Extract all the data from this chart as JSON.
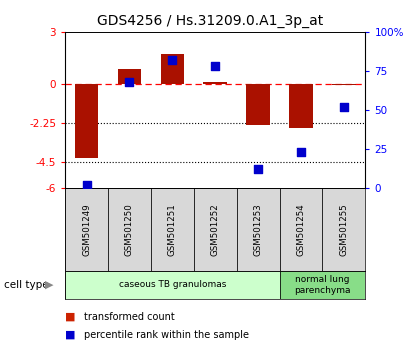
{
  "title": "GDS4256 / Hs.31209.0.A1_3p_at",
  "samples": [
    "GSM501249",
    "GSM501250",
    "GSM501251",
    "GSM501252",
    "GSM501253",
    "GSM501254",
    "GSM501255"
  ],
  "transformed_count": [
    -4.3,
    0.85,
    1.7,
    0.12,
    -2.4,
    -2.55,
    -0.05
  ],
  "percentile_rank": [
    2,
    68,
    82,
    78,
    12,
    23,
    52
  ],
  "ylim_left": [
    -6,
    3
  ],
  "ylim_right": [
    0,
    100
  ],
  "yticks_left": [
    -6,
    -4.5,
    -2.25,
    0,
    3
  ],
  "ytick_labels_left": [
    "-6",
    "-4.5",
    "-2.25",
    "0",
    "3"
  ],
  "yticks_right": [
    0,
    25,
    50,
    75,
    100
  ],
  "ytick_labels_right": [
    "0",
    "25",
    "50",
    "75",
    "100%"
  ],
  "hlines": [
    -2.25,
    -4.5
  ],
  "bar_color": "#aa1100",
  "dot_color": "#0000cc",
  "cell_type_groups": [
    {
      "label": "caseous TB granulomas",
      "samples": [
        0,
        1,
        2,
        3,
        4
      ],
      "color": "#ccffcc"
    },
    {
      "label": "normal lung\nparenchyma",
      "samples": [
        5,
        6
      ],
      "color": "#88dd88"
    }
  ],
  "cell_type_label": "cell type",
  "legend_items": [
    {
      "color": "#cc2200",
      "label": "transformed count"
    },
    {
      "color": "#0000cc",
      "label": "percentile rank within the sample"
    }
  ],
  "background_color": "#ffffff",
  "title_fontsize": 10,
  "tick_fontsize": 7.5
}
